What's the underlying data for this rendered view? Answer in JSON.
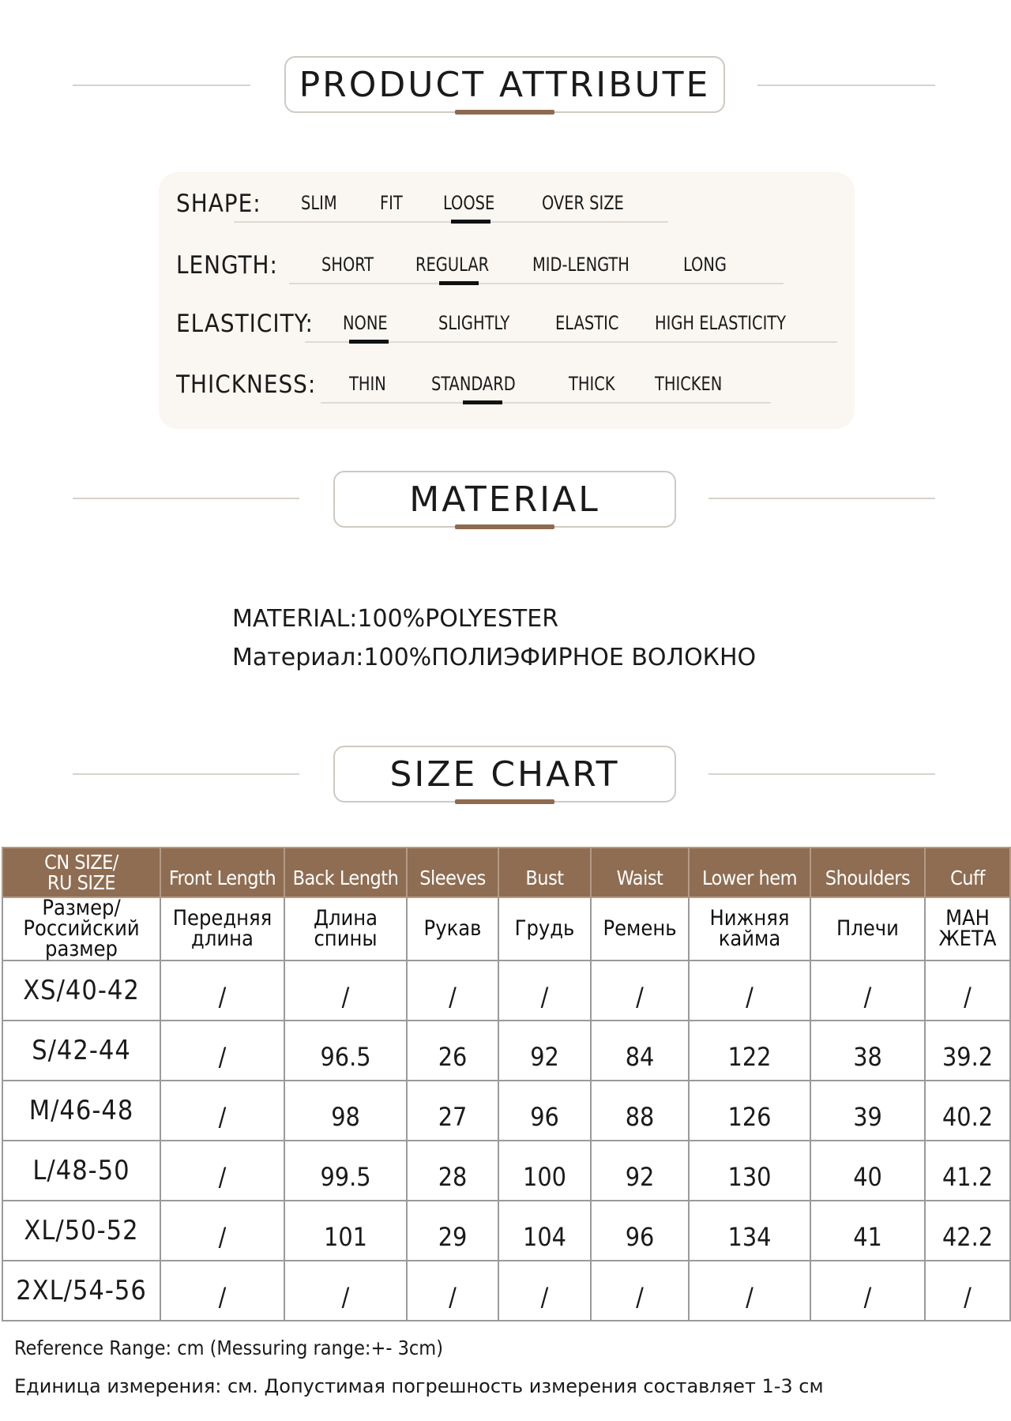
{
  "sections": {
    "attribute": "PRODUCT ATTRIBUTE",
    "material": "MATERIAL",
    "size_chart": "SIZE CHART"
  },
  "attributes": [
    {
      "label": "SHAPE:",
      "options": [
        "SLIM",
        "FIT",
        "LOOSE",
        "OVER SIZE"
      ],
      "selected": "LOOSE"
    },
    {
      "label": "LENGTH:",
      "options": [
        "SHORT",
        "REGULAR",
        "MID-LENGTH",
        "LONG"
      ],
      "selected": "REGULAR"
    },
    {
      "label": "ELASTICITY:",
      "options": [
        "NONE",
        "SLIGHTLY",
        "ELASTIC",
        "HIGH ELASTICITY"
      ],
      "selected": "NONE"
    },
    {
      "label": "THICKNESS:",
      "options": [
        "THIN",
        "STANDARD",
        "THICK",
        "THICKEN"
      ],
      "selected": "STANDARD"
    }
  ],
  "material": {
    "en_label": "MATERIAL:",
    "en_value": "100%POLYESTER",
    "ru_label": "Материал:",
    "ru_value": "100%ПОЛИЭФИРНОЕ ВОЛОКНО"
  },
  "size_table": {
    "headers_en": [
      "CN SIZE/\nRU SIZE",
      "Front Length",
      "Back Length",
      "Sleeves",
      "Bust",
      "Waist",
      "Lower hem",
      "Shoulders",
      "Cuff"
    ],
    "headers_ru": [
      "Размер/\nРоссийский\nразмер",
      "Передняя\nдлина",
      "Длина\nспины",
      "Рукав",
      "Грудь",
      "Ремень",
      "Нижняя\nкайма",
      "Плечи",
      "МАН\nЖЕТА"
    ],
    "rows": [
      [
        "XS/40-42",
        "/",
        "/",
        "/",
        "/",
        "/",
        "/",
        "/",
        "/"
      ],
      [
        "S/42-44",
        "/",
        "96.5",
        "26",
        "92",
        "84",
        "122",
        "38",
        "39.2"
      ],
      [
        "M/46-48",
        "/",
        "98",
        "27",
        "96",
        "88",
        "126",
        "39",
        "40.2"
      ],
      [
        "L/48-50",
        "/",
        "99.5",
        "28",
        "100",
        "92",
        "130",
        "40",
        "41.2"
      ],
      [
        "XL/50-52",
        "/",
        "101",
        "29",
        "104",
        "96",
        "134",
        "41",
        "42.2"
      ],
      [
        "2XL/54-56",
        "/",
        "/",
        "/",
        "/",
        "/",
        "/",
        "/",
        "/"
      ]
    ]
  },
  "footer": {
    "en": "Reference Range: cm (Messuring range:+- 3cm)",
    "ru": "Единица измерения: см. Допустимая погрешность измерения составляет 1-3 см"
  },
  "colors": {
    "accent": "#8f6d52",
    "panel": "#faf6f1"
  }
}
